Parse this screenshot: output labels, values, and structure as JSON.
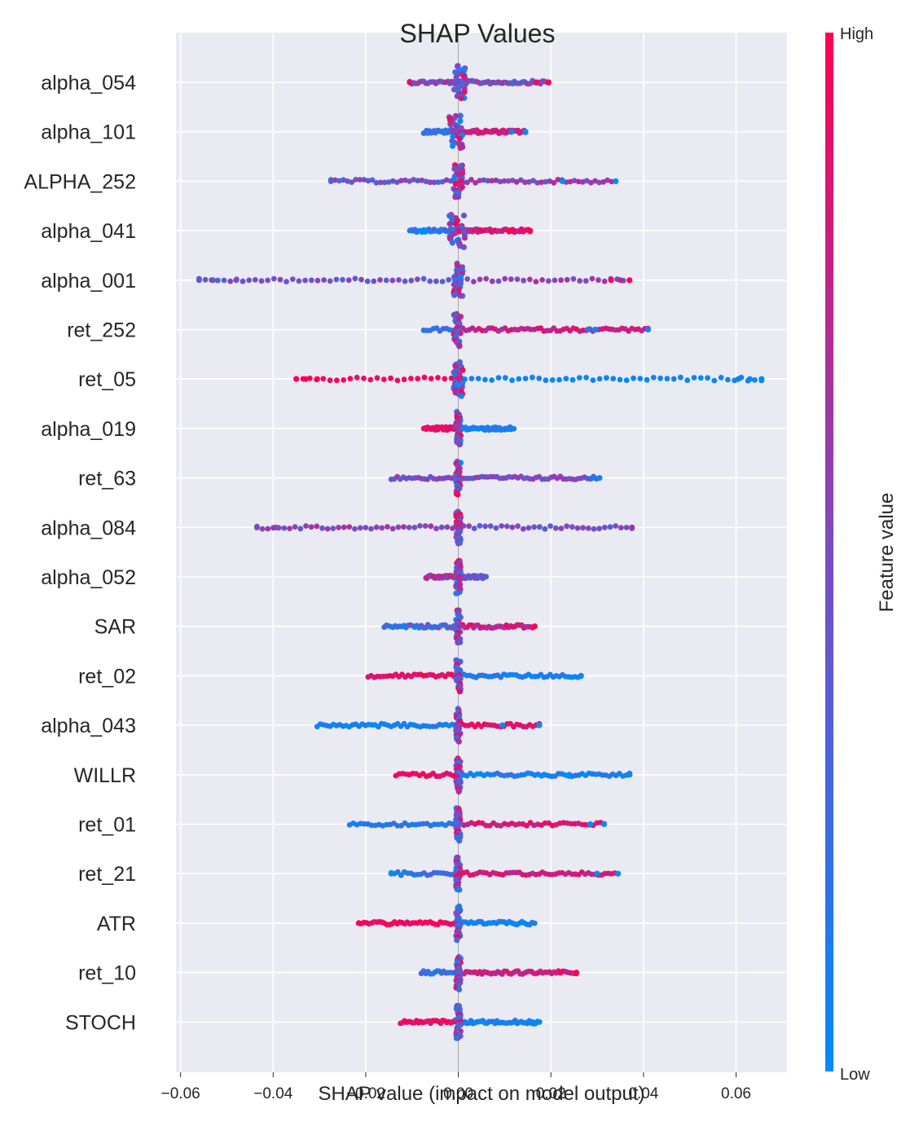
{
  "chart_data": {
    "type": "scatter",
    "title": "SHAP Values",
    "xlabel": "SHAP value (impact on model output)",
    "xlim": [
      -0.061,
      0.071
    ],
    "xticks": [
      -0.06,
      -0.04,
      -0.02,
      0.0,
      0.02,
      0.04,
      0.06
    ],
    "xtick_labels": [
      "−0.06",
      "−0.04",
      "−0.02",
      "0.00",
      "0.02",
      "0.04",
      "0.06"
    ],
    "grid": true,
    "colorbar": {
      "label": "Feature value",
      "high_label": "High",
      "low_label": "Low",
      "low_color": "#008bfb",
      "mid_color": "#7c4bc3",
      "high_color": "#ff0052"
    },
    "features": [
      {
        "name": "alpha_054",
        "min": -0.0105,
        "max": 0.0195,
        "low_side": 0.5,
        "spread": 0.5,
        "core": [
          -0.001,
          0.0015
        ],
        "outliers": [
          [
            -0.0105,
            0.9
          ],
          [
            0.0195,
            1.0
          ],
          [
            0.0168,
            0.95
          ]
        ]
      },
      {
        "name": "alpha_101",
        "min": -0.0075,
        "max": 0.0145,
        "low_side": 0.2,
        "spread": 0.15,
        "core": [
          -0.002,
          0.001
        ],
        "outliers": [
          [
            0.0145,
            0.0
          ],
          [
            0.0115,
            0.05
          ]
        ]
      },
      {
        "name": "ALPHA_252",
        "min": -0.0275,
        "max": 0.034,
        "low_side": 0.45,
        "spread": 0.35,
        "core": [
          -0.001,
          0.001
        ],
        "outliers": [
          [
            0.0225,
            0.0
          ],
          [
            0.034,
            0.0
          ],
          [
            -0.0275,
            0.3
          ]
        ]
      },
      {
        "name": "alpha_041",
        "min": -0.0105,
        "max": 0.0155,
        "low_side": 0.15,
        "spread": 0.4,
        "core": [
          -0.002,
          0.0015
        ],
        "outliers": [
          [
            0.0155,
            1.0
          ],
          [
            0.0115,
            0.95
          ]
        ]
      },
      {
        "name": "alpha_001",
        "min": -0.056,
        "max": 0.037,
        "low_side": 0.45,
        "spread": 0.25,
        "core": [
          -0.001,
          0.001
        ],
        "outliers": [
          [
            -0.056,
            0.4
          ],
          [
            -0.053,
            0.4
          ],
          [
            -0.048,
            0.45
          ],
          [
            0.037,
            1.0
          ],
          [
            0.035,
            0.7
          ],
          [
            0.033,
            0.95
          ]
        ]
      },
      {
        "name": "ret_252",
        "min": -0.0075,
        "max": 0.041,
        "low_side": 0.2,
        "spread": 0.2,
        "core": [
          -0.001,
          0.0005
        ],
        "outliers": [
          [
            0.041,
            0.0
          ],
          [
            0.0295,
            0.0
          ],
          [
            0.028,
            0.05
          ]
        ]
      },
      {
        "name": "ret_05",
        "min": -0.035,
        "max": 0.0655,
        "low_side": 0.95,
        "spread": 0.1,
        "core": [
          -0.001,
          0.001
        ],
        "outliers": [
          [
            -0.035,
            1.0
          ],
          [
            -0.033,
            1.0
          ],
          [
            -0.0305,
            1.0
          ],
          [
            0.0655,
            0.0
          ],
          [
            0.063,
            0.0
          ],
          [
            0.0605,
            0.0
          ]
        ]
      },
      {
        "name": "alpha_019",
        "min": -0.0075,
        "max": 0.012,
        "low_side": 0.9,
        "spread": 0.15,
        "core": [
          -0.0005,
          0.0005
        ],
        "outliers": []
      },
      {
        "name": "ret_63",
        "min": -0.0145,
        "max": 0.0305,
        "low_side": 0.5,
        "spread": 0.25,
        "core": [
          -0.0005,
          0.0005
        ],
        "outliers": [
          [
            0.0305,
            0.0
          ],
          [
            0.029,
            0.05
          ]
        ]
      },
      {
        "name": "alpha_084",
        "min": -0.0435,
        "max": 0.0375,
        "low_side": 0.55,
        "spread": 0.25,
        "core": [
          -0.0005,
          0.0005
        ],
        "outliers": [
          [
            -0.0435,
            0.5
          ],
          [
            -0.0395,
            0.55
          ],
          [
            0.0375,
            0.65
          ]
        ]
      },
      {
        "name": "alpha_052",
        "min": -0.007,
        "max": 0.006,
        "low_side": 0.6,
        "spread": 0.35,
        "core": [
          -0.0005,
          0.0005
        ],
        "outliers": []
      },
      {
        "name": "SAR",
        "min": -0.016,
        "max": 0.0165,
        "low_side": 0.25,
        "spread": 0.4,
        "core": [
          -0.0005,
          0.0005
        ],
        "outliers": [
          [
            0.0165,
            1.0
          ]
        ]
      },
      {
        "name": "ret_02",
        "min": -0.0195,
        "max": 0.0265,
        "low_side": 0.9,
        "spread": 0.2,
        "core": [
          -0.0005,
          0.0005
        ],
        "outliers": [
          [
            0.0265,
            0.0
          ]
        ]
      },
      {
        "name": "alpha_043",
        "min": -0.0305,
        "max": 0.0175,
        "low_side": 0.1,
        "spread": 0.2,
        "core": [
          -0.0005,
          0.0005
        ],
        "outliers": [
          [
            0.0175,
            0.0
          ],
          [
            0.0095,
            0.0
          ]
        ]
      },
      {
        "name": "WILLR",
        "min": -0.0135,
        "max": 0.037,
        "low_side": 0.9,
        "spread": 0.2,
        "core": [
          -0.0005,
          0.0005
        ],
        "outliers": [
          [
            0.037,
            0.0
          ],
          [
            0.024,
            0.0
          ],
          [
            0.0185,
            0.0
          ]
        ]
      },
      {
        "name": "ret_01",
        "min": -0.0235,
        "max": 0.0315,
        "low_side": 0.15,
        "spread": 0.2,
        "core": [
          -0.0005,
          0.0005
        ],
        "outliers": [
          [
            0.0315,
            0.0
          ],
          [
            0.0285,
            0.0
          ]
        ]
      },
      {
        "name": "ret_21",
        "min": -0.0145,
        "max": 0.0345,
        "low_side": 0.2,
        "spread": 0.2,
        "core": [
          -0.0005,
          0.0005
        ],
        "outliers": [
          [
            0.0345,
            0.0
          ],
          [
            0.03,
            0.0
          ],
          [
            -0.0145,
            0.0
          ]
        ]
      },
      {
        "name": "ATR",
        "min": -0.0215,
        "max": 0.0165,
        "low_side": 0.95,
        "spread": 0.15,
        "core": [
          -0.0005,
          0.0005
        ],
        "outliers": [
          [
            -0.0215,
            1.0
          ]
        ]
      },
      {
        "name": "ret_10",
        "min": -0.008,
        "max": 0.0255,
        "low_side": 0.2,
        "spread": 0.2,
        "core": [
          -0.0005,
          0.0005
        ],
        "outliers": [
          [
            0.0255,
            1.0
          ],
          [
            0.022,
            0.95
          ]
        ]
      },
      {
        "name": "STOCH",
        "min": -0.0125,
        "max": 0.0175,
        "low_side": 0.9,
        "spread": 0.2,
        "core": [
          -0.0005,
          0.0005
        ],
        "outliers": [
          [
            0.0175,
            0.0
          ],
          [
            0.016,
            0.05
          ]
        ]
      }
    ]
  }
}
